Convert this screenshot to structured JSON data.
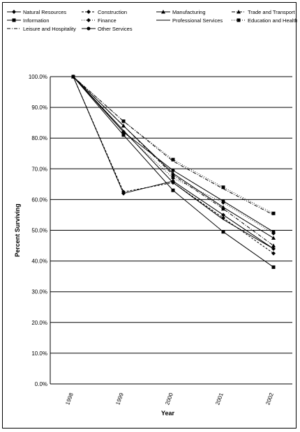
{
  "chart_data": {
    "type": "line",
    "title": "",
    "xlabel": "Year",
    "ylabel": "Percent Surviving",
    "categories": [
      "1998",
      "1999",
      "2000",
      "2001",
      "2002"
    ],
    "yticks": [
      "0.0%",
      "10.0%",
      "20.0%",
      "30.0%",
      "40.0%",
      "50.0%",
      "60.0%",
      "70.0%",
      "80.0%",
      "90.0%",
      "100.0%"
    ],
    "ylim": [
      0,
      100
    ],
    "grid": "horizontal",
    "legend_position": "top",
    "series": [
      {
        "name": "Natural Resources",
        "marker": "diamond",
        "dash": "solid",
        "values": [
          100.0,
          62.0,
          66.0,
          55.0,
          44.0
        ]
      },
      {
        "name": "Construction",
        "marker": "diamond",
        "dash": "dash",
        "values": [
          100.0,
          62.5,
          65.5,
          54.0,
          42.5
        ]
      },
      {
        "name": "Manufacturing",
        "marker": "triangle",
        "dash": "solid",
        "values": [
          100.0,
          84.0,
          68.5,
          57.5,
          47.5
        ]
      },
      {
        "name": "Trade and Transport",
        "marker": "triangle",
        "dash": "dashdot",
        "values": [
          100.0,
          84.0,
          68.0,
          57.0,
          45.0
        ]
      },
      {
        "name": "Information",
        "marker": "square",
        "dash": "solid",
        "values": [
          100.0,
          81.0,
          63.0,
          49.5,
          38.0
        ]
      },
      {
        "name": "Finance",
        "marker": "diamond",
        "dash": "none",
        "values": [
          100.0,
          82.0,
          67.0,
          59.0,
          49.0
        ]
      },
      {
        "name": "Professional Services",
        "marker": "none",
        "dash": "solid",
        "values": [
          100.0,
          82.5,
          65.5,
          53.5,
          44.0
        ]
      },
      {
        "name": "Education and Health",
        "marker": "square",
        "dash": "none",
        "values": [
          100.0,
          85.5,
          73.0,
          64.0,
          55.5
        ]
      },
      {
        "name": "Leisure and Hospitality",
        "marker": "none",
        "dash": "dashdot",
        "values": [
          100.0,
          85.5,
          72.5,
          63.5,
          55.0
        ]
      },
      {
        "name": "Other Services",
        "marker": "circle",
        "dash": "solid",
        "values": [
          100.0,
          82.0,
          69.5,
          59.5,
          49.5
        ]
      }
    ]
  }
}
